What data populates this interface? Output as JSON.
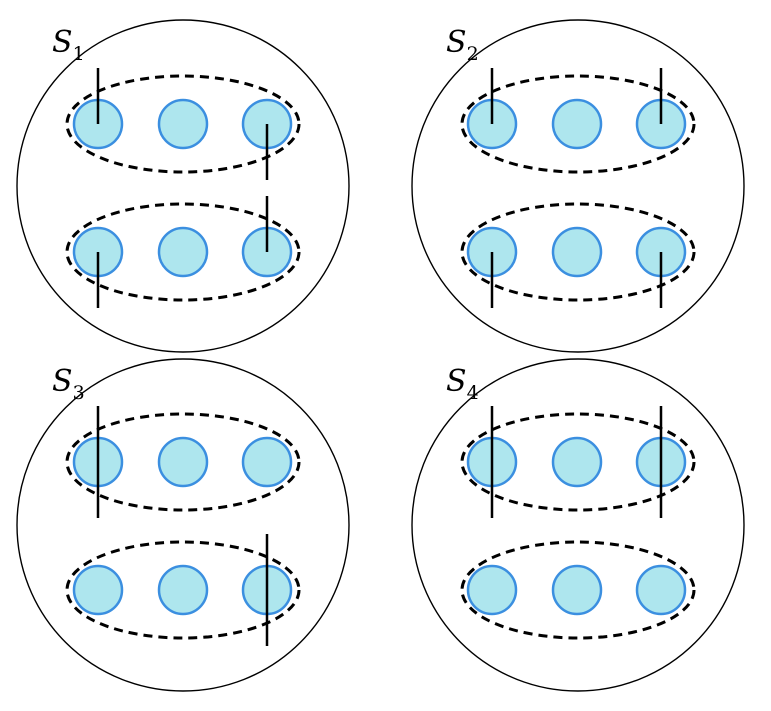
{
  "colors": {
    "node_fill": "#aee6ee",
    "node_stroke": "#3b8fe0",
    "line": "#000000"
  },
  "panels": [
    {
      "label_main": "S",
      "label_sub": "1"
    },
    {
      "label_main": "S",
      "label_sub": "2"
    },
    {
      "label_main": "S",
      "label_sub": "3"
    },
    {
      "label_main": "S",
      "label_sub": "4"
    }
  ]
}
